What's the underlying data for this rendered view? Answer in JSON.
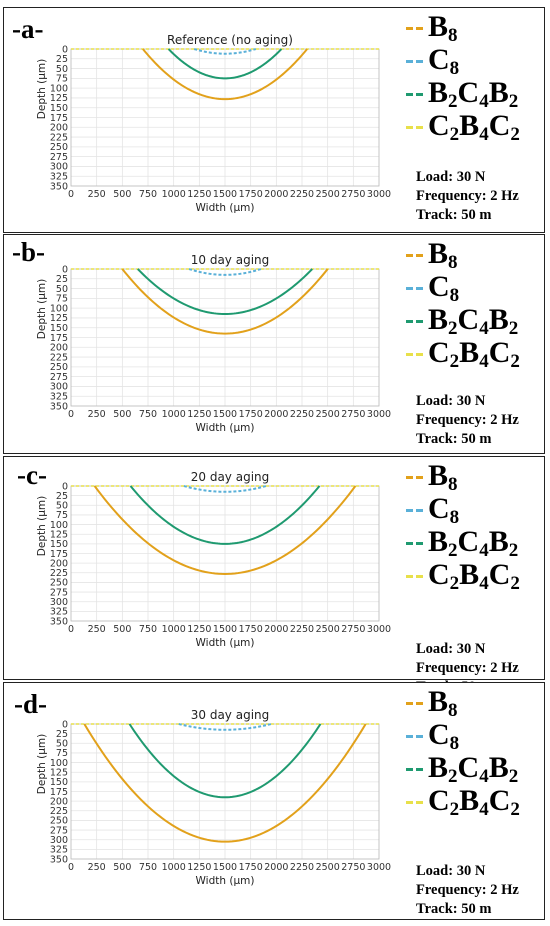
{
  "series_legend": [
    {
      "label_main": "B",
      "label_sub": "8",
      "color": "#e2a11b"
    },
    {
      "label_main": "C",
      "label_sub": "8",
      "color": "#5ab0d8"
    },
    {
      "label_main": "B",
      "label_sub": "2",
      "label_main2": "C",
      "label_sub2": "4",
      "label_main3": "B",
      "label_sub3": "2",
      "color": "#1f9a70"
    },
    {
      "label_main": "C",
      "label_sub": "2",
      "label_main2": "B",
      "label_sub2": "4",
      "label_main3": "C",
      "label_sub3": "2",
      "color": "#e8e04a"
    }
  ],
  "params": {
    "load": "Load: 30 N",
    "frequency": "Frequency: 2 Hz",
    "track": "Track: 50 m"
  },
  "chart_data": [
    {
      "letter": "-a-",
      "type": "line",
      "title": "Reference (no aging)",
      "xlabel": "Width (μm)",
      "ylabel": "Depth (μm)",
      "xlim": [
        0,
        3000
      ],
      "ylim": [
        0,
        350
      ],
      "y_inverted": true,
      "grid": true,
      "xticks": [
        "0",
        "250",
        "500",
        "750",
        "1000",
        "1250",
        "1500",
        "1750",
        "2000",
        "2250",
        "2500",
        "2750",
        "3000"
      ],
      "yticks": [
        "0",
        "25",
        "50",
        "75",
        "100",
        "125",
        "150",
        "175",
        "200",
        "225",
        "250",
        "275",
        "300",
        "325",
        "350"
      ],
      "series": [
        {
          "name": "B8",
          "color": "#e2a11b",
          "x_start": 700,
          "x_end": 2300,
          "center": 1500,
          "max_depth": 128
        },
        {
          "name": "B2C4B2",
          "color": "#1f9a70",
          "x_start": 950,
          "x_end": 2050,
          "center": 1500,
          "max_depth": 75
        },
        {
          "name": "C8",
          "color": "#5ab0d8",
          "x_start": 1200,
          "x_end": 1800,
          "center": 1500,
          "max_depth": 12
        },
        {
          "name": "C2B4C2",
          "color": "#e8e04a",
          "x_start": 0,
          "x_end": 3000,
          "center": 1500,
          "max_depth": 1
        }
      ]
    },
    {
      "letter": "-b-",
      "type": "line",
      "title": "10 day aging",
      "xlabel": "Width (μm)",
      "ylabel": "Depth (μm)",
      "xlim": [
        0,
        3000
      ],
      "ylim": [
        0,
        350
      ],
      "y_inverted": true,
      "grid": true,
      "xticks": [
        "0",
        "250",
        "500",
        "750",
        "1000",
        "1250",
        "1500",
        "1750",
        "2000",
        "2250",
        "2500",
        "2750",
        "3000"
      ],
      "yticks": [
        "0",
        "25",
        "50",
        "75",
        "100",
        "125",
        "150",
        "175",
        "200",
        "225",
        "250",
        "275",
        "300",
        "325",
        "350"
      ],
      "series": [
        {
          "name": "B8",
          "color": "#e2a11b",
          "x_start": 500,
          "x_end": 2500,
          "center": 1500,
          "max_depth": 165
        },
        {
          "name": "B2C4B2",
          "color": "#1f9a70",
          "x_start": 650,
          "x_end": 2350,
          "center": 1500,
          "max_depth": 115
        },
        {
          "name": "C8",
          "color": "#5ab0d8",
          "x_start": 1150,
          "x_end": 1850,
          "center": 1500,
          "max_depth": 15
        },
        {
          "name": "C2B4C2",
          "color": "#e8e04a",
          "x_start": 0,
          "x_end": 3000,
          "center": 1500,
          "max_depth": 1
        }
      ]
    },
    {
      "letter": "-c-",
      "type": "line",
      "title": "20 day aging",
      "xlabel": "Width (μm)",
      "ylabel": "Depth (μm)",
      "xlim": [
        0,
        3000
      ],
      "ylim": [
        0,
        350
      ],
      "y_inverted": true,
      "grid": true,
      "xticks": [
        "0",
        "250",
        "500",
        "750",
        "1000",
        "1250",
        "1500",
        "1750",
        "2000",
        "2250",
        "2500",
        "2750",
        "3000"
      ],
      "yticks": [
        "0",
        "25",
        "50",
        "75",
        "100",
        "125",
        "150",
        "175",
        "200",
        "225",
        "250",
        "275",
        "300",
        "325",
        "350"
      ],
      "series": [
        {
          "name": "B8",
          "color": "#e2a11b",
          "x_start": 230,
          "x_end": 2770,
          "center": 1500,
          "max_depth": 228
        },
        {
          "name": "B2C4B2",
          "color": "#1f9a70",
          "x_start": 580,
          "x_end": 2420,
          "center": 1500,
          "max_depth": 150
        },
        {
          "name": "C8",
          "color": "#5ab0d8",
          "x_start": 1100,
          "x_end": 1900,
          "center": 1500,
          "max_depth": 15
        },
        {
          "name": "C2B4C2",
          "color": "#e8e04a",
          "x_start": 0,
          "x_end": 3000,
          "center": 1500,
          "max_depth": 1
        }
      ]
    },
    {
      "letter": "-d-",
      "type": "line",
      "title": "30 day aging",
      "xlabel": "Width (μm)",
      "ylabel": "Depth (μm)",
      "xlim": [
        0,
        3000
      ],
      "ylim": [
        0,
        350
      ],
      "y_inverted": true,
      "grid": true,
      "xticks": [
        "0",
        "250",
        "500",
        "750",
        "1000",
        "1250",
        "1500",
        "1750",
        "2000",
        "2250",
        "2500",
        "2750",
        "3000"
      ],
      "yticks": [
        "0",
        "25",
        "50",
        "75",
        "100",
        "125",
        "150",
        "175",
        "200",
        "225",
        "250",
        "275",
        "300",
        "325",
        "350"
      ],
      "series": [
        {
          "name": "B8",
          "color": "#e2a11b",
          "x_start": 130,
          "x_end": 2870,
          "center": 1500,
          "max_depth": 305
        },
        {
          "name": "B2C4B2",
          "color": "#1f9a70",
          "x_start": 570,
          "x_end": 2430,
          "center": 1500,
          "max_depth": 190
        },
        {
          "name": "C8",
          "color": "#5ab0d8",
          "x_start": 1050,
          "x_end": 1950,
          "center": 1500,
          "max_depth": 15
        },
        {
          "name": "C2B4C2",
          "color": "#e8e04a",
          "x_start": 0,
          "x_end": 3000,
          "center": 1500,
          "max_depth": 1
        }
      ]
    }
  ]
}
